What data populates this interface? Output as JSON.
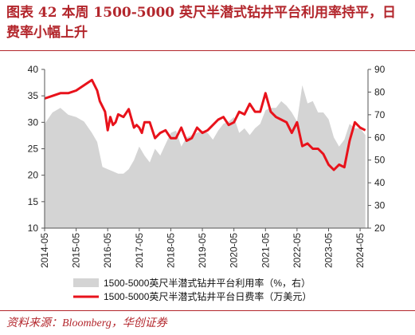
{
  "title": "图表 42   本周 1500-5000 英尺半潜式钻井平台利用率持平，日费率小幅上升",
  "source": "资料来源：Bloomberg，华创证券",
  "colors": {
    "accent": "#b3262c",
    "area": "#d4d4d4",
    "line": "#e8121b"
  },
  "chart_data": {
    "type": "area",
    "title": "",
    "xlabel": "",
    "ylabel": "",
    "x_tick_labels": [
      "2014-05",
      "2015-05",
      "2016-05",
      "2017-05",
      "2018-05",
      "2019-05",
      "2020-05",
      "2021-05",
      "2022-05",
      "2023-05",
      "2024-05"
    ],
    "y_left": {
      "lim": [
        10,
        40
      ],
      "ticks": [
        "10",
        "15",
        "20",
        "25",
        "30",
        "35",
        "40"
      ]
    },
    "y_right": {
      "lim": [
        20,
        90
      ],
      "ticks": [
        "20",
        "30",
        "40",
        "50",
        "60",
        "70",
        "80",
        "90"
      ]
    },
    "series": [
      {
        "name": "1500-5000英尺半潜式钻井平台利用率（%，右）",
        "kind": "area",
        "axis": "right",
        "x": [
          "2014-05",
          "2014-08",
          "2014-11",
          "2015-02",
          "2015-05",
          "2015-08",
          "2015-11",
          "2016-01",
          "2016-03",
          "2016-05",
          "2016-07",
          "2016-09",
          "2016-11",
          "2017-01",
          "2017-03",
          "2017-05",
          "2017-07",
          "2017-09",
          "2017-11",
          "2018-01",
          "2018-03",
          "2018-05",
          "2018-07",
          "2018-09",
          "2018-11",
          "2019-01",
          "2019-03",
          "2019-05",
          "2019-07",
          "2019-09",
          "2019-11",
          "2020-01",
          "2020-03",
          "2020-05",
          "2020-07",
          "2020-09",
          "2020-11",
          "2021-01",
          "2021-03",
          "2021-05",
          "2021-07",
          "2021-09",
          "2021-11",
          "2022-01",
          "2022-03",
          "2022-05",
          "2022-07",
          "2022-09",
          "2022-11",
          "2023-01",
          "2023-03",
          "2023-05",
          "2023-07",
          "2023-09",
          "2023-11",
          "2024-01",
          "2024-03",
          "2024-05",
          "2024-07"
        ],
        "values": [
          66,
          71,
          73,
          70,
          69,
          67,
          62,
          58,
          47,
          46,
          45,
          44,
          44,
          46,
          50,
          56,
          52,
          49,
          55,
          52,
          57,
          62,
          63,
          56,
          60,
          61,
          62,
          63,
          62,
          59,
          63,
          66,
          67,
          69,
          62,
          64,
          61,
          64,
          66,
          72,
          73,
          73,
          76,
          74,
          71,
          67,
          83,
          75,
          76,
          71,
          71,
          68,
          60,
          56,
          59,
          66,
          64,
          64,
          61
        ]
      },
      {
        "name": "1500-5000英尺半潜式钻井平台日费率（万美元）",
        "kind": "line",
        "axis": "left",
        "x": [
          "2014-05",
          "2014-08",
          "2014-11",
          "2015-02",
          "2015-05",
          "2015-08",
          "2015-11",
          "2016-01",
          "2016-02",
          "2016-03",
          "2016-04",
          "2016-05",
          "2016-06",
          "2016-07",
          "2016-08",
          "2016-09",
          "2016-11",
          "2017-01",
          "2017-03",
          "2017-04",
          "2017-05",
          "2017-06",
          "2017-07",
          "2017-09",
          "2017-11",
          "2018-01",
          "2018-03",
          "2018-05",
          "2018-07",
          "2018-09",
          "2018-11",
          "2019-01",
          "2019-03",
          "2019-05",
          "2019-07",
          "2019-09",
          "2019-11",
          "2020-01",
          "2020-03",
          "2020-05",
          "2020-07",
          "2020-09",
          "2020-11",
          "2021-01",
          "2021-03",
          "2021-05",
          "2021-07",
          "2021-09",
          "2021-11",
          "2022-01",
          "2022-03",
          "2022-05",
          "2022-07",
          "2022-09",
          "2022-11",
          "2023-01",
          "2023-03",
          "2023-05",
          "2023-07",
          "2023-09",
          "2023-11",
          "2024-01",
          "2024-03",
          "2024-05",
          "2024-07"
        ],
        "values": [
          34.5,
          35.0,
          35.5,
          35.5,
          36.0,
          37.0,
          38.0,
          36.0,
          34.0,
          33.0,
          32.0,
          28.5,
          31.0,
          29.5,
          30.0,
          31.5,
          31.0,
          32.5,
          29.0,
          29.5,
          29.0,
          28.0,
          30.0,
          30.0,
          27.0,
          28.0,
          28.5,
          27.0,
          27.0,
          29.0,
          26.5,
          27.0,
          29.0,
          28.0,
          28.5,
          29.5,
          30.5,
          31.0,
          29.5,
          30.0,
          32.0,
          31.5,
          33.5,
          32.0,
          32.0,
          35.5,
          32.0,
          31.0,
          30.5,
          30.0,
          28.0,
          30.0,
          25.5,
          26.0,
          25.0,
          25.0,
          24.0,
          22.0,
          21.0,
          22.0,
          21.5,
          26.5,
          30.0,
          29.0,
          28.5
        ]
      }
    ],
    "legend": "bottom-center"
  }
}
